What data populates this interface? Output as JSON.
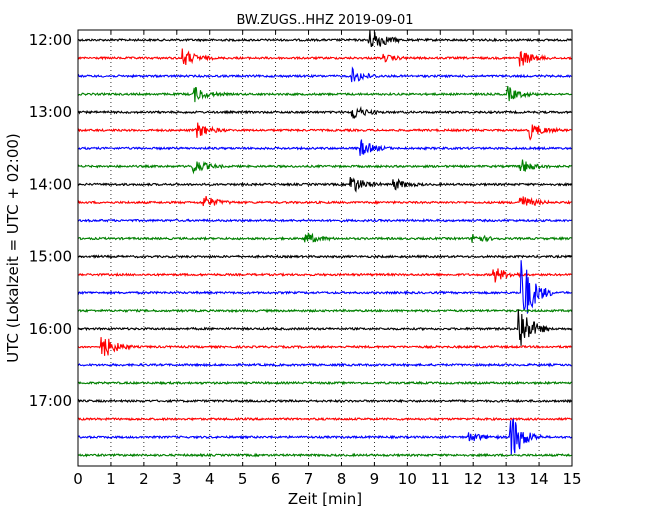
{
  "chart_data": {
    "type": "line",
    "title": "BW.ZUGS..HHZ 2019-09-01",
    "xlabel": "Zeit  [min]",
    "ylabel": "UTC (Lokalzeit = UTC + 02:00)",
    "xlim": [
      0,
      15
    ],
    "x_ticks": [
      "0",
      "1",
      "2",
      "3",
      "4",
      "5",
      "6",
      "7",
      "8",
      "9",
      "10",
      "11",
      "12",
      "13",
      "14",
      "15"
    ],
    "y_ticks": [
      "12:00",
      "13:00",
      "14:00",
      "15:00",
      "16:00",
      "17:00"
    ],
    "trace_interval_min": 15,
    "trace_count": 24,
    "trace_colors": [
      "#000000",
      "#ff0000",
      "#0000ff",
      "#008000"
    ],
    "grid": "vertical dotted",
    "events": [
      {
        "trace": "12:00",
        "minute": 8.85,
        "amp": 0.6
      },
      {
        "trace": "12:00",
        "minute": 9.05,
        "amp": 0.25
      },
      {
        "trace": "12:15",
        "minute": 3.2,
        "amp": 0.55
      },
      {
        "trace": "12:15",
        "minute": 13.45,
        "amp": 0.5
      },
      {
        "trace": "12:15",
        "minute": 9.3,
        "amp": 0.2
      },
      {
        "trace": "12:30",
        "minute": 8.35,
        "amp": 0.45
      },
      {
        "trace": "12:45",
        "minute": 3.55,
        "amp": 0.45
      },
      {
        "trace": "12:45",
        "minute": 13.05,
        "amp": 0.45
      },
      {
        "trace": "13:00",
        "minute": 8.35,
        "amp": 0.45
      },
      {
        "trace": "13:15",
        "minute": 3.6,
        "amp": 0.5
      },
      {
        "trace": "13:15",
        "minute": 13.75,
        "amp": 0.5
      },
      {
        "trace": "13:30",
        "minute": 8.6,
        "amp": 0.5
      },
      {
        "trace": "13:45",
        "minute": 3.5,
        "amp": 0.5
      },
      {
        "trace": "13:45",
        "minute": 13.45,
        "amp": 0.45
      },
      {
        "trace": "14:00",
        "minute": 8.3,
        "amp": 0.6
      },
      {
        "trace": "14:00",
        "minute": 9.6,
        "amp": 0.35
      },
      {
        "trace": "14:15",
        "minute": 3.85,
        "amp": 0.4
      },
      {
        "trace": "14:15",
        "minute": 13.45,
        "amp": 0.45
      },
      {
        "trace": "14:45",
        "minute": 6.9,
        "amp": 0.4
      },
      {
        "trace": "14:45",
        "minute": 12.0,
        "amp": 0.3
      },
      {
        "trace": "15:15",
        "minute": 12.65,
        "amp": 0.5
      },
      {
        "trace": "15:30",
        "minute": 13.5,
        "amp": 2.2
      },
      {
        "trace": "16:00",
        "minute": 13.4,
        "amp": 1.6
      },
      {
        "trace": "16:15",
        "minute": 0.75,
        "amp": 0.8
      },
      {
        "trace": "17:30",
        "minute": 13.15,
        "amp": 1.6
      },
      {
        "trace": "17:30",
        "minute": 11.9,
        "amp": 0.3
      }
    ]
  }
}
